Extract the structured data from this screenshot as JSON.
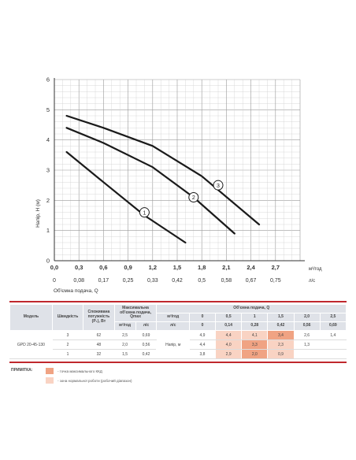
{
  "chart_data": {
    "type": "line",
    "ylabel": "Напір, Н (м)",
    "xlabel": "Об'ємна подача, Q",
    "x_unit_top": "м³/год",
    "x_unit_bottom": "л/с",
    "xlim": [
      0,
      3.0
    ],
    "ylim": [
      0,
      6
    ],
    "grid": true,
    "x_ticks": [
      "0,0",
      "0,3",
      "0,6",
      "0,9",
      "1,2",
      "1,5",
      "1,8",
      "2,1",
      "2,4",
      "2,7"
    ],
    "x_ticks_ls": [
      "0",
      "0,08",
      "0,17",
      "0,25",
      "0,33",
      "0,42",
      "0,5",
      "0,58",
      "0,67",
      "0,75"
    ],
    "y_ticks": [
      "0",
      "1",
      "2",
      "3",
      "4",
      "5",
      "6"
    ],
    "series": [
      {
        "name": "1",
        "x": [
          0.15,
          0.6,
          1.1,
          1.6
        ],
        "y": [
          3.6,
          2.6,
          1.5,
          0.6
        ],
        "label_at": [
          1.1,
          1.6
        ]
      },
      {
        "name": "2",
        "x": [
          0.15,
          0.6,
          1.2,
          1.7,
          2.2
        ],
        "y": [
          4.4,
          3.9,
          3.1,
          2.1,
          0.9
        ],
        "label_at": [
          1.7,
          2.1
        ]
      },
      {
        "name": "3",
        "x": [
          0.15,
          0.6,
          1.2,
          1.8,
          2.5
        ],
        "y": [
          4.8,
          4.4,
          3.8,
          2.8,
          1.2
        ],
        "label_at": [
          2.0,
          2.5
        ]
      }
    ],
    "table": {
      "headers": {
        "model": "Модель",
        "speed": "Швидкість",
        "power": "Споживана потужність (P₁), Вт",
        "maxflow": "Максимальна об'ємна подача, Qmax",
        "flow": "Об'ємна подача, Q",
        "unit_m3h": "м³/год",
        "unit_ls": "л/с",
        "head": "Напір, м"
      },
      "q_m3h": [
        "0",
        "0,5",
        "1",
        "1,5",
        "2,0",
        "2,5"
      ],
      "q_ls": [
        "0",
        "0,14",
        "0,28",
        "0,42",
        "0,56",
        "0,69"
      ],
      "model_name": "GPD 20-45-130",
      "rows": [
        {
          "speed": "3",
          "power": "62",
          "qmax_m3h": "2,5",
          "qmax_ls": "0,69",
          "heads": [
            "4,9",
            "4,4",
            "4,1",
            "3,4",
            "2,6",
            "1,4"
          ],
          "marks": [
            "",
            "lo",
            "lo",
            "hi",
            "",
            ""
          ]
        },
        {
          "speed": "2",
          "power": "48",
          "qmax_m3h": "2,0",
          "qmax_ls": "0,56",
          "heads": [
            "4,4",
            "4,0",
            "3,3",
            "2,3",
            "1,3",
            ""
          ],
          "marks": [
            "",
            "lo",
            "hi",
            "lo",
            "",
            ""
          ]
        },
        {
          "speed": "1",
          "power": "32",
          "qmax_m3h": "1,5",
          "qmax_ls": "0,42",
          "heads": [
            "3,8",
            "2,9",
            "2,0",
            "0,9",
            "",
            ""
          ],
          "marks": [
            "",
            "lo",
            "hi",
            "lo",
            "",
            ""
          ]
        }
      ]
    },
    "notes": {
      "title": "ПРИМІТКА:",
      "hi": "- точка максимального ККД",
      "lo": "- зона нормальної роботи (робочий діапазон)"
    },
    "colors": {
      "hi": "#f0a383",
      "lo": "#f9d3c3",
      "accent": "#c0282d"
    }
  }
}
